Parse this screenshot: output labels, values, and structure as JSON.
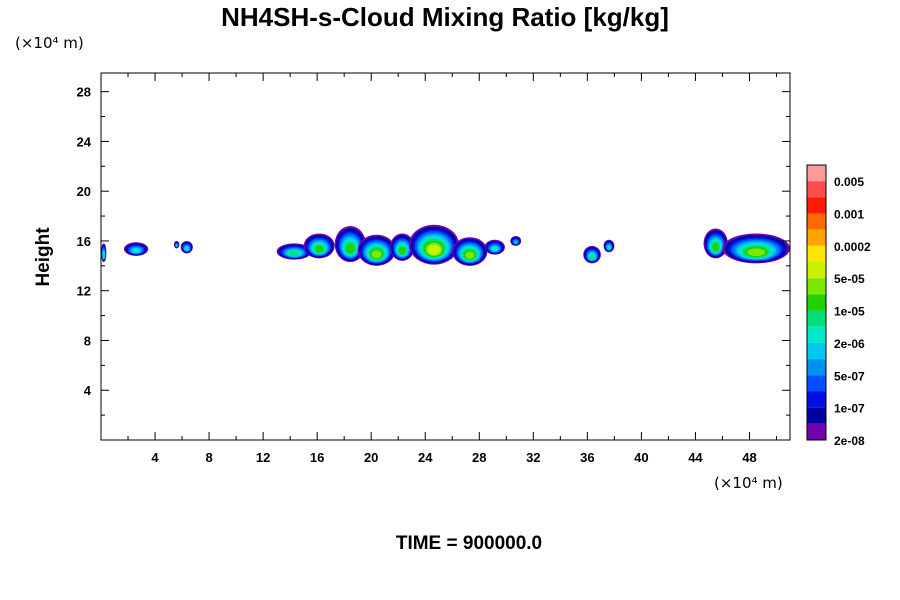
{
  "chart_data": {
    "type": "heatmap",
    "title": "NH4SH-s-Cloud Mixing Ratio [kg/kg]",
    "ylabel": "Height",
    "x_unit": "(×10⁴ m)",
    "y_unit": "(×10⁴ m)",
    "time_label": "TIME = 900000.0",
    "xlim": [
      0,
      51
    ],
    "ylim": [
      0,
      29.5
    ],
    "x_ticks": [
      4,
      8,
      12,
      16,
      20,
      24,
      28,
      32,
      36,
      40,
      44,
      48
    ],
    "y_ticks": [
      4,
      8,
      12,
      16,
      20,
      24,
      28
    ],
    "colorbar": {
      "labels": [
        "0.005",
        "0.001",
        "0.0002",
        "5e-05",
        "1e-05",
        "2e-06",
        "5e-07",
        "1e-07",
        "2e-08"
      ],
      "colors": [
        "#ff9a9a",
        "#ff4d4d",
        "#ff1a00",
        "#ff6a00",
        "#ffa500",
        "#ffe600",
        "#c8f000",
        "#7be800",
        "#22d000",
        "#00e07a",
        "#00e8c8",
        "#00c8f0",
        "#0090f0",
        "#0050ff",
        "#0010e0",
        "#0000a0",
        "#7000b0"
      ]
    },
    "cloud_cells": [
      {
        "x0": 0.0,
        "x1": 0.4,
        "base": 14.3,
        "top": 15.8,
        "core": 0.4
      },
      {
        "x0": 1.7,
        "x1": 3.5,
        "base": 14.8,
        "top": 15.9,
        "core": 0.3
      },
      {
        "x0": 5.4,
        "x1": 5.8,
        "base": 15.4,
        "top": 16.0,
        "core": 0.1
      },
      {
        "x0": 5.9,
        "x1": 6.8,
        "base": 15.0,
        "top": 16.0,
        "core": 0.3
      },
      {
        "x0": 13.0,
        "x1": 15.6,
        "base": 14.5,
        "top": 15.8,
        "core": 0.35
      },
      {
        "x0": 15.0,
        "x1": 17.3,
        "base": 14.6,
        "top": 16.6,
        "core": 0.5
      },
      {
        "x0": 17.3,
        "x1": 19.6,
        "base": 14.3,
        "top": 17.2,
        "core": 0.6
      },
      {
        "x0": 19.0,
        "x1": 21.8,
        "base": 14.0,
        "top": 16.5,
        "core": 0.7
      },
      {
        "x0": 21.4,
        "x1": 23.2,
        "base": 14.4,
        "top": 16.6,
        "core": 0.6
      },
      {
        "x0": 22.8,
        "x1": 26.5,
        "base": 14.1,
        "top": 17.3,
        "core": 0.85
      },
      {
        "x0": 26.0,
        "x1": 28.6,
        "base": 14.0,
        "top": 16.3,
        "core": 0.7
      },
      {
        "x0": 28.4,
        "x1": 29.9,
        "base": 14.9,
        "top": 16.1,
        "core": 0.25
      },
      {
        "x0": 30.3,
        "x1": 31.1,
        "base": 15.6,
        "top": 16.4,
        "core": 0.1
      },
      {
        "x0": 35.7,
        "x1": 37.0,
        "base": 14.2,
        "top": 15.6,
        "core": 0.45
      },
      {
        "x0": 37.2,
        "x1": 38.0,
        "base": 15.1,
        "top": 16.1,
        "core": 0.2
      },
      {
        "x0": 44.6,
        "x1": 46.4,
        "base": 14.6,
        "top": 17.0,
        "core": 0.5
      },
      {
        "x0": 46.0,
        "x1": 51.0,
        "base": 14.2,
        "top": 16.6,
        "core": 0.7
      }
    ]
  }
}
